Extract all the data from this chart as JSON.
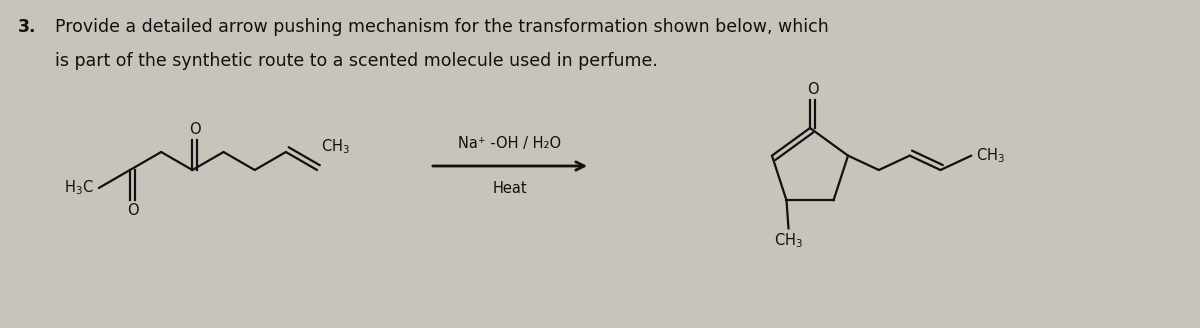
{
  "title_number": "3.",
  "title_line1": "Provide a detailed arrow pushing mechanism for the transformation shown below, which",
  "title_line2": "is part of the synthetic route to a scented molecule used in perfume.",
  "reagents_line1": "Na⁺ -OH / H₂O",
  "reagents_line2": "Heat",
  "bg_color": "#c8c4bc",
  "text_color": "#111111",
  "bond_color": "#111111",
  "title_fontsize": 12.5,
  "chem_fontsize": 10.5
}
